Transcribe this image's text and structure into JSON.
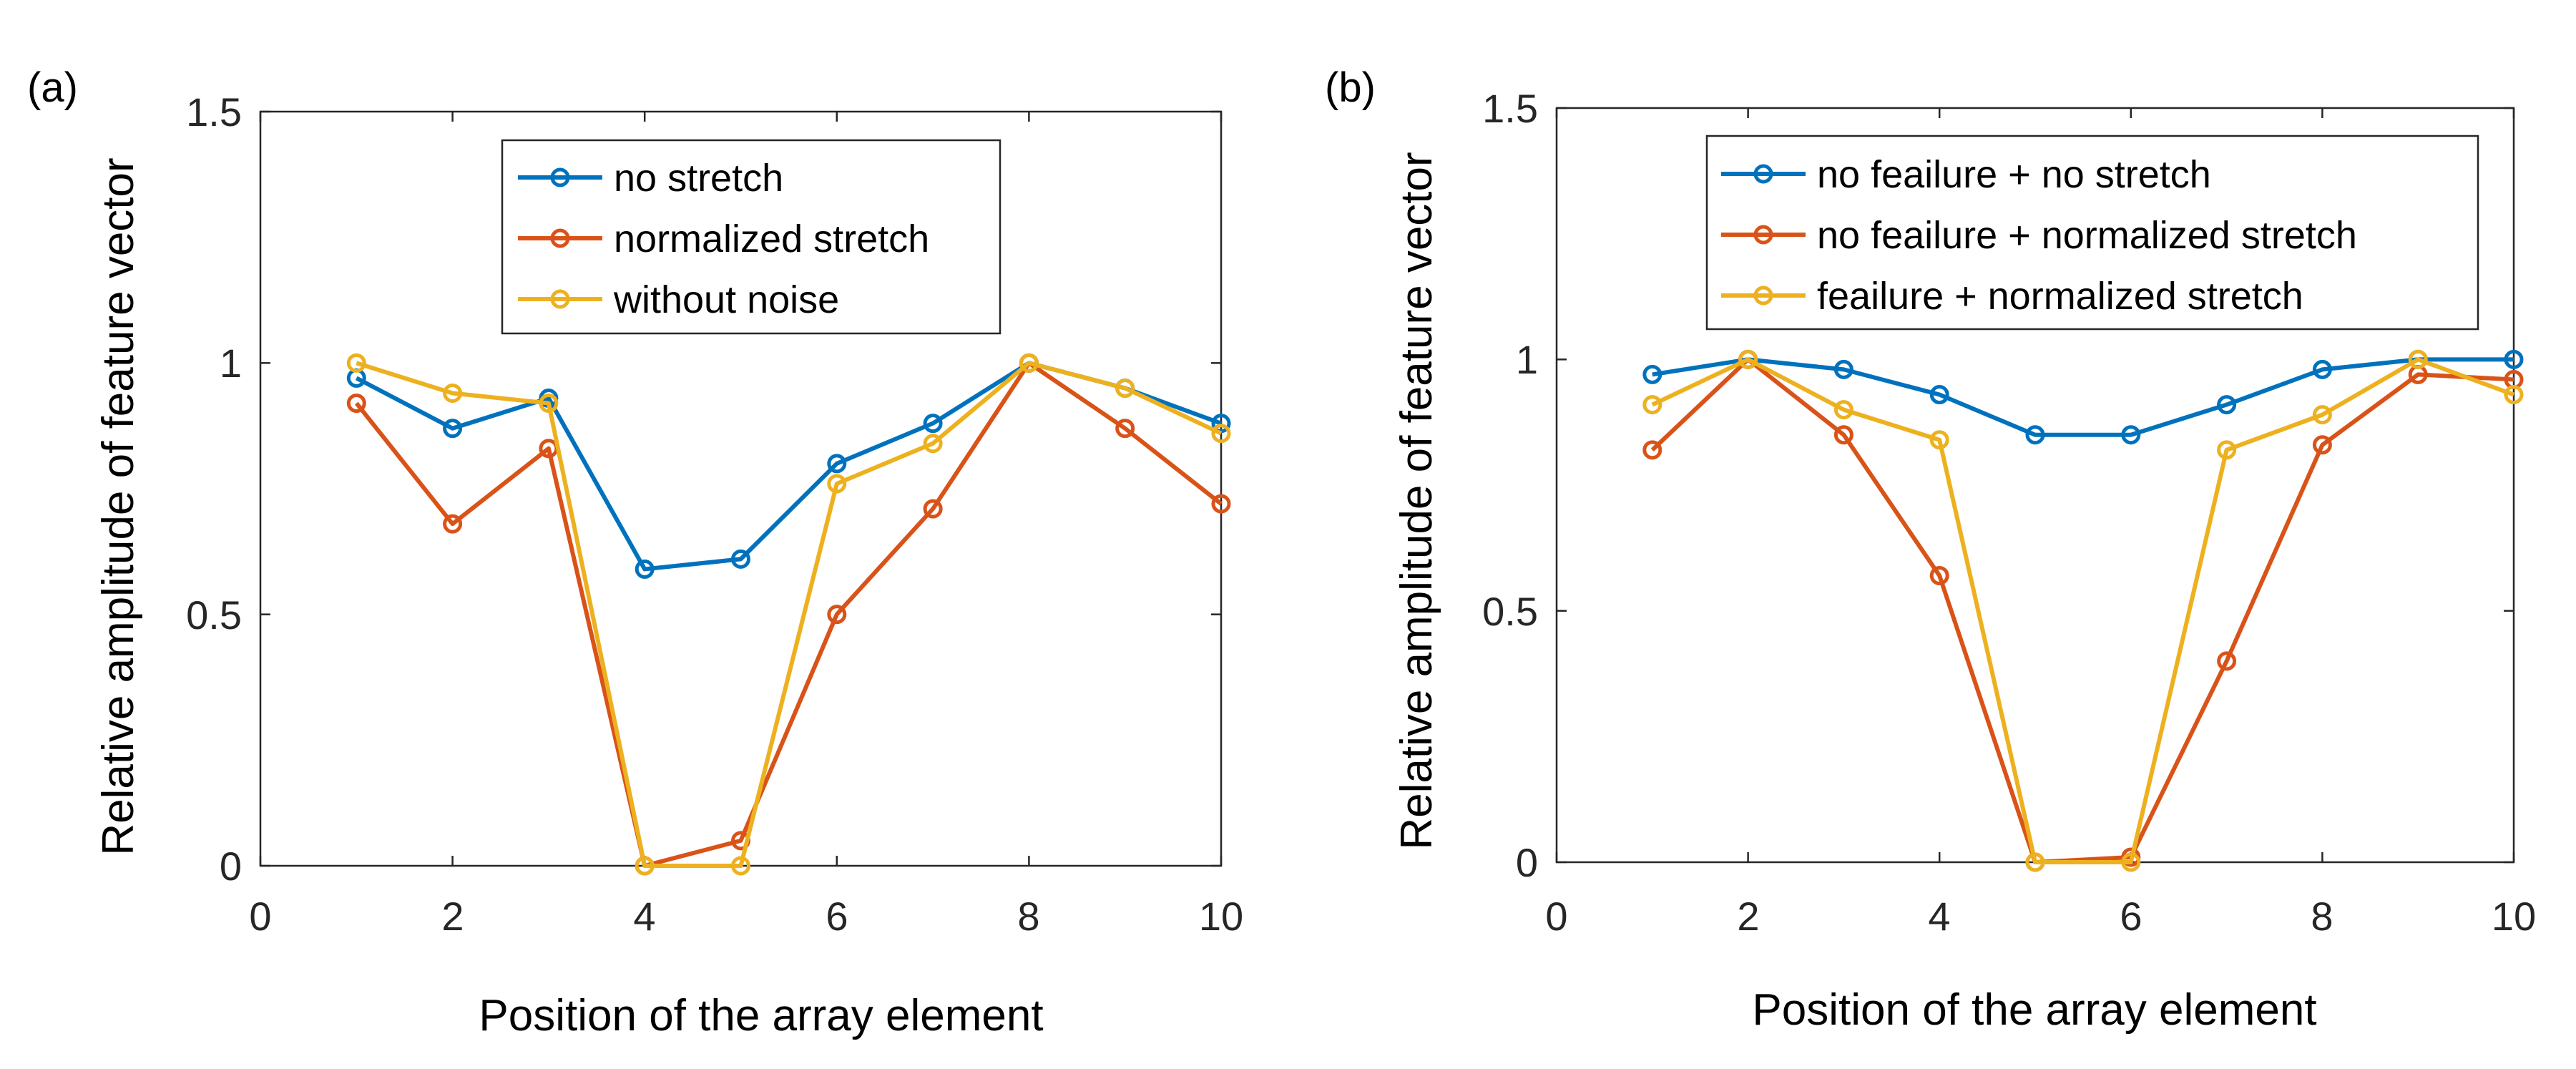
{
  "colors": {
    "series1": "#0072BD",
    "series2": "#D95319",
    "series3": "#EDB120",
    "axis": "#262626"
  },
  "chart_data": [
    {
      "type": "line",
      "panel_label": "(a)",
      "xlabel": "Position of the array element",
      "ylabel": "Relative amplitude of feature vector",
      "xlim": [
        0,
        10
      ],
      "ylim": [
        0,
        1.5
      ],
      "xticks": [
        0,
        2,
        4,
        6,
        8,
        10
      ],
      "yticks": [
        0,
        0.5,
        1,
        1.5
      ],
      "ytick_labels": [
        "0",
        "0.5",
        "1",
        "1.5"
      ],
      "grid": false,
      "legend_position": "top-center",
      "x": [
        1,
        2,
        3,
        4,
        5,
        6,
        7,
        8,
        9,
        10
      ],
      "series": [
        {
          "name": "no stretch",
          "values": [
            0.97,
            0.87,
            0.93,
            0.59,
            0.61,
            0.8,
            0.88,
            1.0,
            0.95,
            0.88
          ]
        },
        {
          "name": "normalized stretch",
          "values": [
            0.92,
            0.68,
            0.83,
            0.0,
            0.05,
            0.5,
            0.71,
            1.0,
            0.87,
            0.72
          ]
        },
        {
          "name": "without noise",
          "values": [
            1.0,
            0.94,
            0.92,
            0.0,
            0.0,
            0.76,
            0.84,
            1.0,
            0.95,
            0.86
          ]
        }
      ]
    },
    {
      "type": "line",
      "panel_label": "(b)",
      "xlabel": "Position of the array element",
      "ylabel": "Relative amplitude of feature vector",
      "xlim": [
        0,
        10
      ],
      "ylim": [
        0,
        1.5
      ],
      "xticks": [
        0,
        2,
        4,
        6,
        8,
        10
      ],
      "yticks": [
        0,
        0.5,
        1,
        1.5
      ],
      "ytick_labels": [
        "0",
        "0.5",
        "1",
        "1.5"
      ],
      "grid": false,
      "legend_position": "top-center",
      "x": [
        1,
        2,
        3,
        4,
        5,
        6,
        7,
        8,
        9,
        10
      ],
      "series": [
        {
          "name": "no feailure + no stretch",
          "values": [
            0.97,
            1.0,
            0.98,
            0.93,
            0.85,
            0.85,
            0.91,
            0.98,
            1.0,
            1.0
          ]
        },
        {
          "name": "no feailure + normalized stretch",
          "values": [
            0.82,
            1.0,
            0.85,
            0.57,
            0.0,
            0.01,
            0.4,
            0.83,
            0.97,
            0.96
          ]
        },
        {
          "name": "feailure + normalized stretch",
          "values": [
            0.91,
            1.0,
            0.9,
            0.84,
            0.0,
            0.0,
            0.82,
            0.89,
            1.0,
            0.93
          ]
        }
      ]
    }
  ]
}
